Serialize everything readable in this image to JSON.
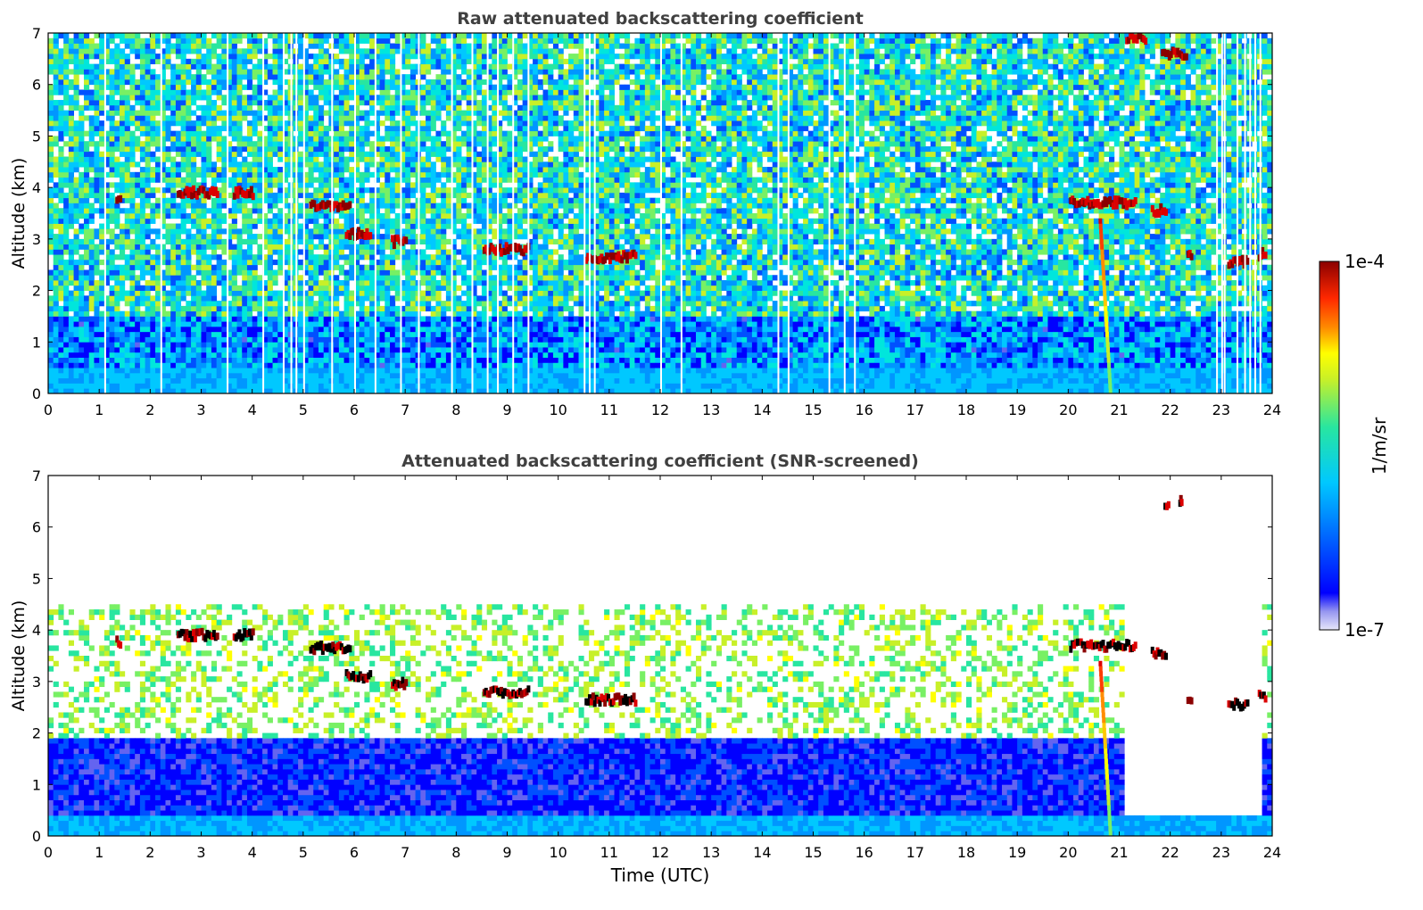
{
  "chart_data": [
    {
      "type": "heatmap",
      "title": "Raw attenuated backscattering coefficient",
      "xlabel": "",
      "ylabel": "Altitude (km)",
      "xlim": [
        0,
        24
      ],
      "ylim": [
        0,
        7
      ],
      "x_ticks": [
        "0",
        "1",
        "2",
        "3",
        "4",
        "5",
        "6",
        "7",
        "8",
        "9",
        "10",
        "11",
        "12",
        "13",
        "14",
        "15",
        "16",
        "17",
        "18",
        "19",
        "20",
        "21",
        "22",
        "23",
        "24"
      ],
      "y_ticks": [
        "0",
        "1",
        "2",
        "3",
        "4",
        "5",
        "6",
        "7"
      ],
      "screened": false,
      "features": {
        "boundary_layer_top_km": 0.5,
        "noise_limit_km": 7,
        "cloud_layers": [
          {
            "t_start": 1.3,
            "t_end": 1.4,
            "alt_km": 3.75
          },
          {
            "t_start": 2.5,
            "t_end": 3.3,
            "alt_km": 3.9
          },
          {
            "t_start": 3.6,
            "t_end": 4.0,
            "alt_km": 3.9
          },
          {
            "t_start": 5.1,
            "t_end": 5.9,
            "alt_km": 3.65
          },
          {
            "t_start": 5.8,
            "t_end": 6.3,
            "alt_km": 3.1
          },
          {
            "t_start": 6.7,
            "t_end": 7.0,
            "alt_km": 2.95
          },
          {
            "t_start": 8.5,
            "t_end": 9.4,
            "alt_km": 2.8
          },
          {
            "t_start": 10.5,
            "t_end": 11.5,
            "alt_km": 2.65
          },
          {
            "t_start": 20.0,
            "t_end": 21.3,
            "alt_km": 3.7
          },
          {
            "t_start": 21.6,
            "t_end": 21.9,
            "alt_km": 3.55
          },
          {
            "t_start": 22.3,
            "t_end": 22.4,
            "alt_km": 2.65
          },
          {
            "t_start": 23.1,
            "t_end": 23.5,
            "alt_km": 2.55
          },
          {
            "t_start": 23.7,
            "t_end": 23.85,
            "alt_km": 2.7
          },
          {
            "t_start": 21.1,
            "t_end": 21.5,
            "alt_km": 6.9
          },
          {
            "t_start": 21.8,
            "t_end": 22.3,
            "alt_km": 6.6
          }
        ],
        "virga_t": 20.6,
        "data_gaps_t": [
          1.1,
          2.2,
          3.5,
          4.2,
          4.6,
          4.75,
          4.85,
          5.0,
          5.55,
          6.0,
          6.4,
          6.9,
          7.25,
          7.9,
          8.3,
          8.6,
          8.8,
          9.1,
          9.4,
          10.5,
          10.6,
          10.7,
          12.0,
          12.4,
          14.3,
          14.5,
          15.3,
          15.6,
          15.8,
          22.9,
          23.0,
          23.05,
          23.3,
          23.45,
          23.55,
          23.65,
          23.75
        ]
      }
    },
    {
      "type": "heatmap",
      "title": "Attenuated backscattering coefficient (SNR-screened)",
      "xlabel": "Time (UTC)",
      "ylabel": "Altitude (km)",
      "xlim": [
        0,
        24
      ],
      "ylim": [
        0,
        7
      ],
      "x_ticks": [
        "0",
        "1",
        "2",
        "3",
        "4",
        "5",
        "6",
        "7",
        "8",
        "9",
        "10",
        "11",
        "12",
        "13",
        "14",
        "15",
        "16",
        "17",
        "18",
        "19",
        "20",
        "21",
        "22",
        "23",
        "24"
      ],
      "y_ticks": [
        "0",
        "1",
        "2",
        "3",
        "4",
        "5",
        "6",
        "7"
      ],
      "screened": true,
      "features": {
        "boundary_layer_top_km": 0.4,
        "dense_signal_top_km": 1.9,
        "scatter_top_km": 4.5,
        "cloud_layers": [
          {
            "t_start": 1.3,
            "t_end": 1.4,
            "alt_km": 3.75
          },
          {
            "t_start": 2.5,
            "t_end": 3.3,
            "alt_km": 3.9
          },
          {
            "t_start": 3.6,
            "t_end": 4.0,
            "alt_km": 3.9
          },
          {
            "t_start": 5.1,
            "t_end": 5.9,
            "alt_km": 3.65
          },
          {
            "t_start": 5.8,
            "t_end": 6.3,
            "alt_km": 3.1
          },
          {
            "t_start": 6.7,
            "t_end": 7.0,
            "alt_km": 2.95
          },
          {
            "t_start": 8.5,
            "t_end": 9.4,
            "alt_km": 2.8
          },
          {
            "t_start": 10.5,
            "t_end": 11.5,
            "alt_km": 2.65
          },
          {
            "t_start": 20.0,
            "t_end": 21.3,
            "alt_km": 3.7
          },
          {
            "t_start": 21.6,
            "t_end": 21.9,
            "alt_km": 3.55
          },
          {
            "t_start": 22.3,
            "t_end": 22.4,
            "alt_km": 2.65
          },
          {
            "t_start": 23.1,
            "t_end": 23.5,
            "alt_km": 2.55
          },
          {
            "t_start": 23.7,
            "t_end": 23.85,
            "alt_km": 2.7
          },
          {
            "t_start": 21.85,
            "t_end": 21.95,
            "alt_km": 6.45
          },
          {
            "t_start": 22.15,
            "t_end": 22.2,
            "alt_km": 6.5
          }
        ],
        "virga_t": 20.6,
        "low_signal_period_t": [
          21.1,
          23.8
        ]
      }
    }
  ],
  "colorbar": {
    "label": "1/m/sr",
    "max_label": "1e-4",
    "min_label": "1e-7",
    "colors": [
      "#e6e6fa",
      "#c8c8f5",
      "#9696f0",
      "#6464f0",
      "#0000ff",
      "#0050ff",
      "#0096ff",
      "#00c8ff",
      "#00e6dc",
      "#28e6a0",
      "#78f064",
      "#c8f028",
      "#ffff00",
      "#ffc800",
      "#ff8c00",
      "#ff3c00",
      "#dc0000",
      "#8b0000"
    ]
  }
}
